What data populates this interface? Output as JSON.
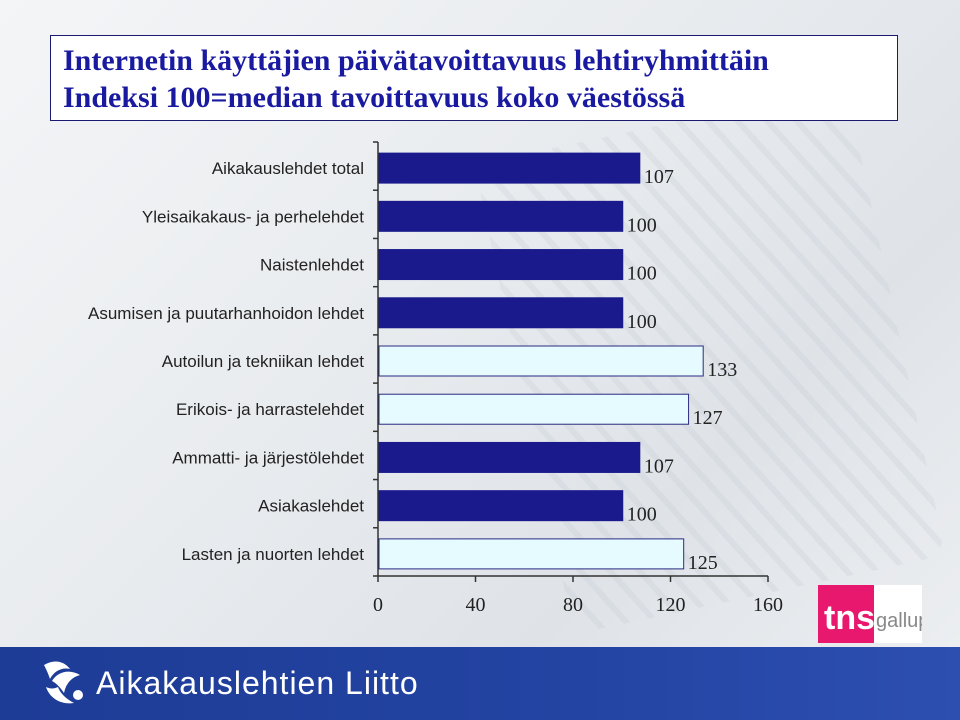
{
  "chart_data": {
    "type": "bar",
    "orientation": "horizontal",
    "title": "Internetin käyttäjien päivätavoittavuus lehtiryhmittäin",
    "subtitle": "Indeksi 100=median tavoittavuus koko väestössä",
    "categories": [
      "Aikakauslehdet total",
      "Yleisaikakaus- ja perhelehdet",
      "Naistenlehdet",
      "Asumisen ja puutarhanhoidon lehdet",
      "Autoilun ja tekniikan lehdet",
      "Erikois- ja harrastelehdet",
      "Ammatti- ja järjestölehdet",
      "Asiakaslehdet",
      "Lasten ja nuorten lehdet"
    ],
    "values": [
      107,
      100,
      100,
      100,
      133,
      127,
      107,
      100,
      125
    ],
    "data_labels": [
      "107",
      "100",
      "100",
      "100",
      "133",
      "127",
      "107",
      "100",
      "125"
    ],
    "highlight": [
      false,
      false,
      false,
      false,
      true,
      true,
      false,
      false,
      true
    ],
    "xlim": [
      0,
      160
    ],
    "xticks": [
      "0",
      "40",
      "80",
      "120",
      "160"
    ],
    "xlabel": "",
    "ylabel": "",
    "grid": false,
    "colors": {
      "bar_normal": "#1a1a8c",
      "bar_highlight": "#e6fbff",
      "bar_highlight_border": "#2a2a80"
    }
  },
  "footer": {
    "organization": "Aikakauslehtien Liitto",
    "logo_icon": "publisher-logo-icon"
  },
  "logo": {
    "brand": "tns",
    "sub": "gallup"
  },
  "colors": {
    "title": "#1a1aa0",
    "footer_bg": "#2444a3",
    "tns_pink": "#e8186e"
  }
}
